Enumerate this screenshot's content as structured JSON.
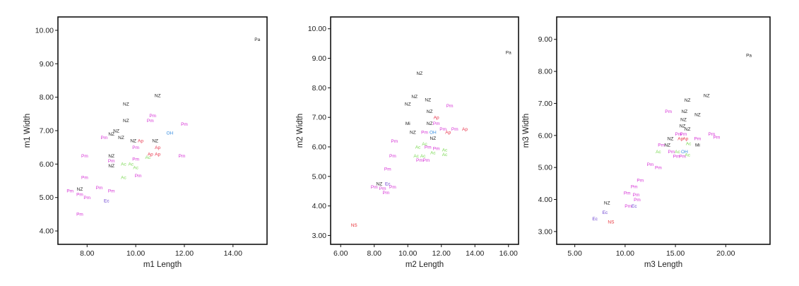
{
  "colors": {
    "NZ": "#222222",
    "Pm": "#d633d6",
    "Ap": "#e8334a",
    "Ac": "#7ed957",
    "OH": "#3a8fe0",
    "Ec": "#6a3fd0",
    "Pa": "#222222",
    "NS": "#e8333a",
    "Mi": "#222222"
  },
  "chart_data": [
    {
      "type": "scatter",
      "xlabel": "m1 Length",
      "ylabel": "m1 Width",
      "xlim": [
        6.8,
        15.4
      ],
      "ylim": [
        3.6,
        10.4
      ],
      "xticks": [
        "8.00",
        "10.00",
        "12.00",
        "14.00"
      ],
      "yticks": [
        "4.00",
        "5.00",
        "6.00",
        "7.00",
        "8.00",
        "9.00",
        "10.00"
      ],
      "points": [
        {
          "x": 15.0,
          "y": 9.73,
          "label": "Pa",
          "group": "Pa"
        },
        {
          "x": 10.9,
          "y": 8.05,
          "label": "NZ",
          "group": "NZ"
        },
        {
          "x": 9.6,
          "y": 7.8,
          "label": "NZ",
          "group": "NZ"
        },
        {
          "x": 10.7,
          "y": 7.45,
          "label": "Pm",
          "group": "Pm"
        },
        {
          "x": 9.6,
          "y": 7.3,
          "label": "NZ",
          "group": "NZ"
        },
        {
          "x": 10.6,
          "y": 7.3,
          "label": "Pm",
          "group": "Pm"
        },
        {
          "x": 12.0,
          "y": 7.2,
          "label": "Pm",
          "group": "Pm"
        },
        {
          "x": 9.2,
          "y": 7.0,
          "label": "NZ",
          "group": "NZ"
        },
        {
          "x": 9.0,
          "y": 6.9,
          "label": "NZ",
          "group": "NZ"
        },
        {
          "x": 11.4,
          "y": 6.93,
          "label": "OH",
          "group": "OH"
        },
        {
          "x": 8.7,
          "y": 6.8,
          "label": "Pm",
          "group": "Pm"
        },
        {
          "x": 9.4,
          "y": 6.8,
          "label": "NZ",
          "group": "NZ"
        },
        {
          "x": 9.9,
          "y": 6.7,
          "label": "NZ",
          "group": "NZ"
        },
        {
          "x": 10.2,
          "y": 6.7,
          "label": "Ap",
          "group": "Ap"
        },
        {
          "x": 10.8,
          "y": 6.7,
          "label": "NZ",
          "group": "NZ"
        },
        {
          "x": 10.0,
          "y": 6.5,
          "label": "Pm",
          "group": "Pm"
        },
        {
          "x": 10.9,
          "y": 6.5,
          "label": "Ap",
          "group": "Ap"
        },
        {
          "x": 7.9,
          "y": 6.25,
          "label": "Pm",
          "group": "Pm"
        },
        {
          "x": 9.0,
          "y": 6.25,
          "label": "NZ",
          "group": "NZ"
        },
        {
          "x": 10.6,
          "y": 6.3,
          "label": "Ap",
          "group": "Ap"
        },
        {
          "x": 10.9,
          "y": 6.3,
          "label": "Ap",
          "group": "Ap"
        },
        {
          "x": 11.9,
          "y": 6.25,
          "label": "Pm",
          "group": "Pm"
        },
        {
          "x": 10.0,
          "y": 6.15,
          "label": "Pm",
          "group": "Pm"
        },
        {
          "x": 10.5,
          "y": 6.2,
          "label": "Ac",
          "group": "Ac"
        },
        {
          "x": 9.0,
          "y": 6.1,
          "label": "Pm",
          "group": "Pm"
        },
        {
          "x": 9.5,
          "y": 6.0,
          "label": "Ac",
          "group": "Ac"
        },
        {
          "x": 9.8,
          "y": 6.0,
          "label": "Ac",
          "group": "Ac"
        },
        {
          "x": 9.0,
          "y": 5.95,
          "label": "NZ",
          "group": "NZ"
        },
        {
          "x": 10.0,
          "y": 5.9,
          "label": "Ac",
          "group": "Ac"
        },
        {
          "x": 10.1,
          "y": 5.65,
          "label": "Pm",
          "group": "Pm"
        },
        {
          "x": 9.5,
          "y": 5.6,
          "label": "Ac",
          "group": "Ac"
        },
        {
          "x": 7.9,
          "y": 5.6,
          "label": "Pm",
          "group": "Pm"
        },
        {
          "x": 8.5,
          "y": 5.3,
          "label": "Pm",
          "group": "Pm"
        },
        {
          "x": 7.7,
          "y": 5.25,
          "label": "NZ",
          "group": "NZ"
        },
        {
          "x": 9.0,
          "y": 5.2,
          "label": "Pm",
          "group": "Pm"
        },
        {
          "x": 7.3,
          "y": 5.2,
          "label": "Pm",
          "group": "Pm"
        },
        {
          "x": 7.7,
          "y": 5.1,
          "label": "Pm",
          "group": "Pm"
        },
        {
          "x": 8.0,
          "y": 5.0,
          "label": "Pm",
          "group": "Pm"
        },
        {
          "x": 8.8,
          "y": 4.9,
          "label": "Ec",
          "group": "Ec"
        },
        {
          "x": 7.7,
          "y": 4.5,
          "label": "Pm",
          "group": "Pm"
        }
      ]
    },
    {
      "type": "scatter",
      "xlabel": "m2 Length",
      "ylabel": "m2 Width",
      "xlim": [
        5.4,
        16.6
      ],
      "ylim": [
        2.7,
        10.4
      ],
      "xticks": [
        "6.00",
        "8.00",
        "10.00",
        "12.00",
        "14.00",
        "16.00"
      ],
      "yticks": [
        "3.00",
        "4.00",
        "5.00",
        "6.00",
        "7.00",
        "8.00",
        "9.00",
        "10.00"
      ],
      "points": [
        {
          "x": 16.0,
          "y": 9.2,
          "label": "Pa",
          "group": "Pa"
        },
        {
          "x": 10.7,
          "y": 8.5,
          "label": "NZ",
          "group": "NZ"
        },
        {
          "x": 10.4,
          "y": 7.7,
          "label": "NZ",
          "group": "NZ"
        },
        {
          "x": 11.2,
          "y": 7.6,
          "label": "NZ",
          "group": "NZ"
        },
        {
          "x": 10.0,
          "y": 7.45,
          "label": "NZ",
          "group": "NZ"
        },
        {
          "x": 12.5,
          "y": 7.4,
          "label": "Pm",
          "group": "Pm"
        },
        {
          "x": 11.3,
          "y": 7.2,
          "label": "NZ",
          "group": "NZ"
        },
        {
          "x": 11.7,
          "y": 7.0,
          "label": "Ap",
          "group": "Ap"
        },
        {
          "x": 10.0,
          "y": 6.8,
          "label": "Mi",
          "group": "Mi"
        },
        {
          "x": 11.3,
          "y": 6.8,
          "label": "NZ",
          "group": "NZ"
        },
        {
          "x": 11.7,
          "y": 6.8,
          "label": "Pm",
          "group": "Pm"
        },
        {
          "x": 12.1,
          "y": 6.6,
          "label": "Pm",
          "group": "Pm"
        },
        {
          "x": 12.8,
          "y": 6.6,
          "label": "Pm",
          "group": "Pm"
        },
        {
          "x": 13.4,
          "y": 6.6,
          "label": "Ap",
          "group": "Ap"
        },
        {
          "x": 10.3,
          "y": 6.5,
          "label": "NZ",
          "group": "NZ"
        },
        {
          "x": 11.0,
          "y": 6.5,
          "label": "Pm",
          "group": "Pm"
        },
        {
          "x": 11.5,
          "y": 6.5,
          "label": "OH",
          "group": "OH"
        },
        {
          "x": 12.4,
          "y": 6.5,
          "label": "Ap",
          "group": "Ap"
        },
        {
          "x": 11.5,
          "y": 6.3,
          "label": "NZ",
          "group": "NZ"
        },
        {
          "x": 11.0,
          "y": 6.1,
          "label": "Ac",
          "group": "Ac"
        },
        {
          "x": 9.2,
          "y": 6.2,
          "label": "Pm",
          "group": "Pm"
        },
        {
          "x": 10.6,
          "y": 6.0,
          "label": "Ac",
          "group": "Ac"
        },
        {
          "x": 11.2,
          "y": 6.0,
          "label": "Pm",
          "group": "Pm"
        },
        {
          "x": 11.7,
          "y": 5.95,
          "label": "Pm",
          "group": "Pm"
        },
        {
          "x": 12.2,
          "y": 5.9,
          "label": "Ac",
          "group": "Ac"
        },
        {
          "x": 11.5,
          "y": 5.8,
          "label": "Ac",
          "group": "Ac"
        },
        {
          "x": 12.2,
          "y": 5.75,
          "label": "Ac",
          "group": "Ac"
        },
        {
          "x": 9.1,
          "y": 5.7,
          "label": "Pm",
          "group": "Pm"
        },
        {
          "x": 10.5,
          "y": 5.7,
          "label": "Ac",
          "group": "Ac"
        },
        {
          "x": 10.9,
          "y": 5.7,
          "label": "Ac",
          "group": "Ac"
        },
        {
          "x": 10.7,
          "y": 5.55,
          "label": "Pm",
          "group": "Pm"
        },
        {
          "x": 11.1,
          "y": 5.55,
          "label": "Pm",
          "group": "Pm"
        },
        {
          "x": 8.8,
          "y": 5.25,
          "label": "Pm",
          "group": "Pm"
        },
        {
          "x": 8.3,
          "y": 4.75,
          "label": "NZ",
          "group": "NZ"
        },
        {
          "x": 8.8,
          "y": 4.75,
          "label": "Ec",
          "group": "Ec"
        },
        {
          "x": 8.0,
          "y": 4.65,
          "label": "Pm",
          "group": "Pm"
        },
        {
          "x": 8.5,
          "y": 4.6,
          "label": "Pm",
          "group": "Pm"
        },
        {
          "x": 8.7,
          "y": 4.45,
          "label": "Pm",
          "group": "Pm"
        },
        {
          "x": 9.1,
          "y": 4.65,
          "label": "Pm",
          "group": "Pm"
        },
        {
          "x": 6.8,
          "y": 3.35,
          "label": "NS",
          "group": "NS"
        }
      ]
    },
    {
      "type": "scatter",
      "xlabel": "m3 Length",
      "ylabel": "m3 Width",
      "xlim": [
        3.2,
        24.4
      ],
      "ylim": [
        2.6,
        9.7
      ],
      "xticks": [
        "5.00",
        "10.00",
        "15.00",
        "20.00"
      ],
      "yticks": [
        "3.00",
        "4.00",
        "5.00",
        "6.00",
        "7.00",
        "8.00",
        "9.00"
      ],
      "points": [
        {
          "x": 22.3,
          "y": 8.5,
          "label": "Pa",
          "group": "Pa"
        },
        {
          "x": 18.1,
          "y": 7.25,
          "label": "NZ",
          "group": "NZ"
        },
        {
          "x": 16.2,
          "y": 7.1,
          "label": "NZ",
          "group": "NZ"
        },
        {
          "x": 14.3,
          "y": 6.75,
          "label": "Pm",
          "group": "Pm"
        },
        {
          "x": 15.9,
          "y": 6.75,
          "label": "NZ",
          "group": "NZ"
        },
        {
          "x": 17.2,
          "y": 6.65,
          "label": "NZ",
          "group": "NZ"
        },
        {
          "x": 15.8,
          "y": 6.5,
          "label": "NZ",
          "group": "NZ"
        },
        {
          "x": 15.7,
          "y": 6.3,
          "label": "NZ",
          "group": "NZ"
        },
        {
          "x": 16.2,
          "y": 6.2,
          "label": "NZ",
          "group": "NZ"
        },
        {
          "x": 15.3,
          "y": 6.05,
          "label": "Pm",
          "group": "Pm"
        },
        {
          "x": 15.8,
          "y": 6.05,
          "label": "Pm",
          "group": "Pm"
        },
        {
          "x": 18.6,
          "y": 6.05,
          "label": "Pm",
          "group": "Pm"
        },
        {
          "x": 19.1,
          "y": 5.95,
          "label": "Pm",
          "group": "Pm"
        },
        {
          "x": 14.5,
          "y": 5.9,
          "label": "NZ",
          "group": "NZ"
        },
        {
          "x": 15.5,
          "y": 5.9,
          "label": "Ap",
          "group": "Ap"
        },
        {
          "x": 16.0,
          "y": 5.9,
          "label": "Ap",
          "group": "Ap"
        },
        {
          "x": 17.2,
          "y": 5.9,
          "label": "Pm",
          "group": "Pm"
        },
        {
          "x": 13.6,
          "y": 5.7,
          "label": "Pm",
          "group": "Pm"
        },
        {
          "x": 14.2,
          "y": 5.7,
          "label": "NZ",
          "group": "NZ"
        },
        {
          "x": 16.3,
          "y": 5.75,
          "label": "Ac",
          "group": "Ac"
        },
        {
          "x": 17.2,
          "y": 5.7,
          "label": "Mi",
          "group": "Mi"
        },
        {
          "x": 13.3,
          "y": 5.5,
          "label": "Ac",
          "group": "Ac"
        },
        {
          "x": 14.6,
          "y": 5.5,
          "label": "Pm",
          "group": "Pm"
        },
        {
          "x": 15.2,
          "y": 5.5,
          "label": "Ac",
          "group": "Ac"
        },
        {
          "x": 15.9,
          "y": 5.5,
          "label": "OH",
          "group": "OH"
        },
        {
          "x": 15.1,
          "y": 5.35,
          "label": "Pm",
          "group": "Pm"
        },
        {
          "x": 15.7,
          "y": 5.35,
          "label": "Pm",
          "group": "Pm"
        },
        {
          "x": 16.2,
          "y": 5.4,
          "label": "Ac",
          "group": "Ac"
        },
        {
          "x": 12.5,
          "y": 5.1,
          "label": "Pm",
          "group": "Pm"
        },
        {
          "x": 13.3,
          "y": 5.0,
          "label": "Pm",
          "group": "Pm"
        },
        {
          "x": 11.5,
          "y": 4.6,
          "label": "Pm",
          "group": "Pm"
        },
        {
          "x": 10.9,
          "y": 4.4,
          "label": "Pm",
          "group": "Pm"
        },
        {
          "x": 10.2,
          "y": 4.2,
          "label": "Pm",
          "group": "Pm"
        },
        {
          "x": 11.1,
          "y": 4.15,
          "label": "Pm",
          "group": "Pm"
        },
        {
          "x": 11.2,
          "y": 4.0,
          "label": "Pm",
          "group": "Pm"
        },
        {
          "x": 10.3,
          "y": 3.8,
          "label": "Pm",
          "group": "Pm"
        },
        {
          "x": 8.2,
          "y": 3.9,
          "label": "NZ",
          "group": "NZ"
        },
        {
          "x": 10.9,
          "y": 3.8,
          "label": "Ec",
          "group": "Ec"
        },
        {
          "x": 8.0,
          "y": 3.6,
          "label": "Ec",
          "group": "Ec"
        },
        {
          "x": 7.0,
          "y": 3.4,
          "label": "Ec",
          "group": "Ec"
        },
        {
          "x": 8.6,
          "y": 3.3,
          "label": "NS",
          "group": "NS"
        }
      ]
    }
  ]
}
